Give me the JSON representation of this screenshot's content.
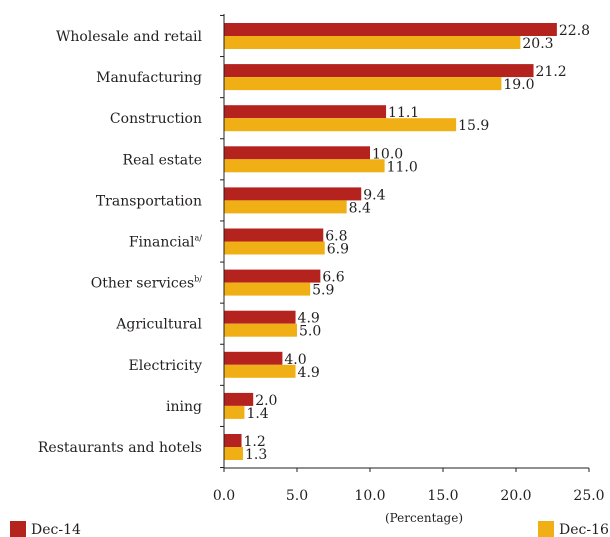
{
  "chart_data": {
    "type": "bar",
    "orientation": "horizontal",
    "categories": [
      "Wholesale and retail",
      "Manufacturing",
      "Construction",
      "Real estate",
      "Transportation",
      "Financial",
      "Other services",
      "Agricultural",
      "Electricity",
      "ining",
      "Restaurants and hotels"
    ],
    "category_superscripts": [
      "",
      "",
      "",
      "",
      "",
      "a/",
      "b/",
      "",
      "",
      "",
      ""
    ],
    "series": [
      {
        "name": "Dec-14",
        "color": "#b5231f",
        "values": [
          22.8,
          21.2,
          11.1,
          10.0,
          9.4,
          6.8,
          6.6,
          4.9,
          4.0,
          2.0,
          1.2
        ],
        "value_labels": [
          "22.8",
          "21.2",
          "11.1",
          "10.0",
          "9.4",
          "6.8",
          "6.6",
          "4.9",
          "4.0",
          "2.0",
          "1.2"
        ]
      },
      {
        "name": "Dec-16",
        "color": "#f0b015",
        "values": [
          20.3,
          19.0,
          15.9,
          11.0,
          8.4,
          6.9,
          5.9,
          5.0,
          4.9,
          1.4,
          1.3
        ],
        "value_labels": [
          "20.3",
          "19.0",
          "15.9",
          "11.0",
          "8.4",
          "6.9",
          "5.9",
          "5.0",
          "4.9",
          "1.4",
          "1.3"
        ]
      }
    ],
    "xlabel": "(Percentage)",
    "xlim": [
      0,
      25
    ],
    "xticks": [
      0,
      5,
      10,
      15,
      20,
      25
    ],
    "xtick_labels": [
      "0.0",
      "5.0",
      "10.0",
      "15.0",
      "20.0",
      "25.0"
    ],
    "grid": false,
    "legend": {
      "placement": "bottom",
      "entries": [
        "Dec-14",
        "Dec-16"
      ]
    }
  }
}
